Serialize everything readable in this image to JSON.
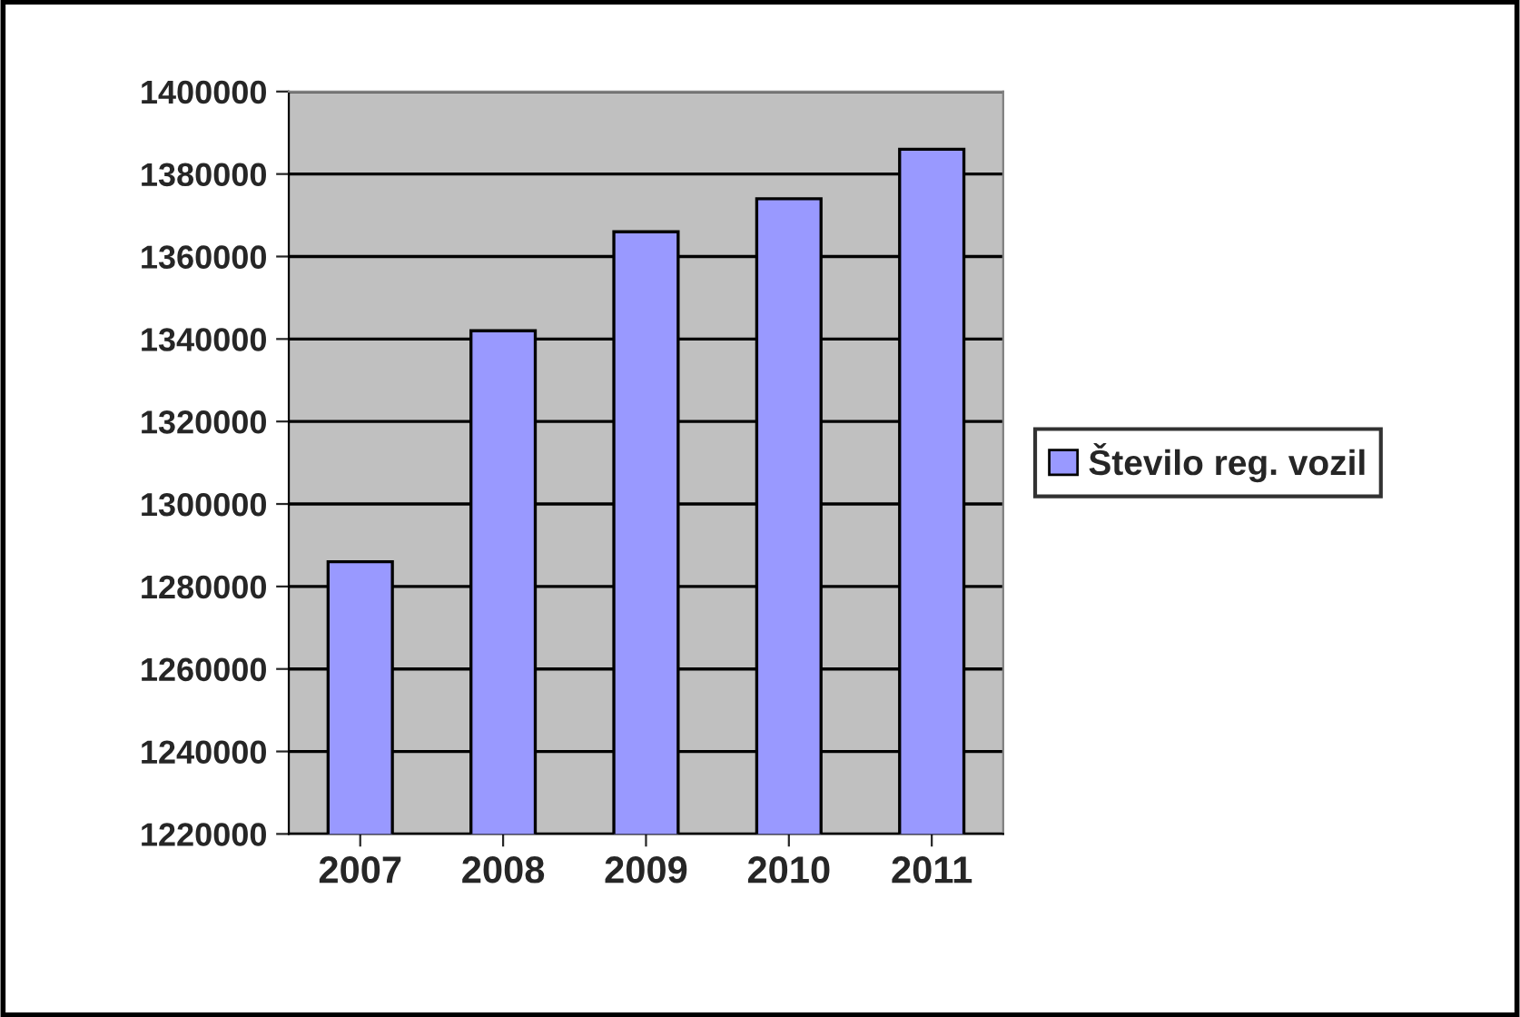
{
  "chart_data": {
    "type": "bar",
    "categories": [
      "2007",
      "2008",
      "2009",
      "2010",
      "2011"
    ],
    "series": [
      {
        "name": "Število reg. vozil",
        "color": "#9999ff",
        "values": [
          1286000,
          1342000,
          1366000,
          1374000,
          1386000
        ]
      }
    ],
    "ylim": [
      1220000,
      1400000
    ],
    "yticks": [
      1220000,
      1240000,
      1260000,
      1280000,
      1300000,
      1320000,
      1340000,
      1360000,
      1380000,
      1400000
    ],
    "grid": "y",
    "legend": "right"
  }
}
